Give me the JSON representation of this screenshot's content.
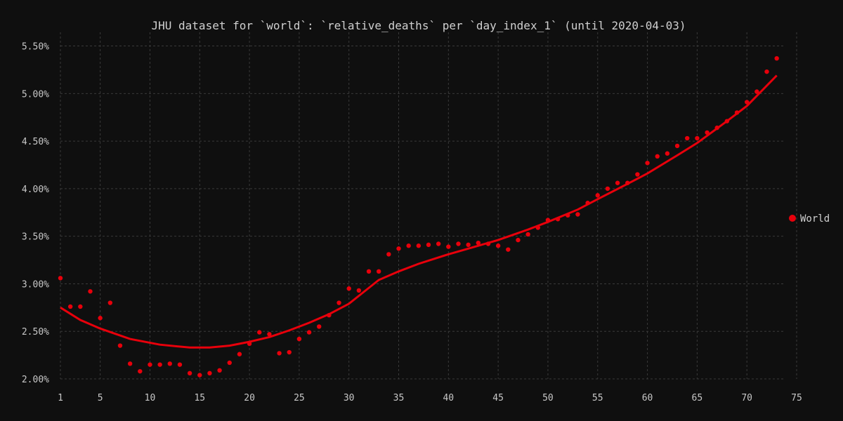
{
  "chart_data": {
    "type": "scatter",
    "title": "JHU dataset for `world`: `relative_deaths` per `day_index_1` (until 2020-04-03)",
    "xlabel": "",
    "ylabel": "",
    "xlim": [
      1,
      75
    ],
    "ylim": [
      2.0,
      5.6
    ],
    "x_ticks": [
      1,
      5,
      10,
      15,
      20,
      25,
      30,
      35,
      40,
      45,
      50,
      55,
      60,
      65,
      70,
      75
    ],
    "y_ticks": [
      2.0,
      2.5,
      3.0,
      3.5,
      4.0,
      4.5,
      5.0,
      5.5
    ],
    "y_tick_labels": [
      "2.00%",
      "2.50%",
      "3.00%",
      "3.50%",
      "4.00%",
      "4.50%",
      "5.00%",
      "5.50%"
    ],
    "grid": true,
    "legend_position": "right",
    "series": [
      {
        "name": "World",
        "color": "#e8000b",
        "points": [
          [
            1,
            3.06
          ],
          [
            2,
            2.76
          ],
          [
            3,
            2.76
          ],
          [
            4,
            2.92
          ],
          [
            5,
            2.64
          ],
          [
            6,
            2.8
          ],
          [
            7,
            2.35
          ],
          [
            8,
            2.16
          ],
          [
            9,
            2.08
          ],
          [
            10,
            2.15
          ],
          [
            11,
            2.15
          ],
          [
            12,
            2.16
          ],
          [
            13,
            2.15
          ],
          [
            14,
            2.06
          ],
          [
            15,
            2.04
          ],
          [
            16,
            2.06
          ],
          [
            17,
            2.09
          ],
          [
            18,
            2.17
          ],
          [
            19,
            2.26
          ],
          [
            20,
            2.37
          ],
          [
            21,
            2.49
          ],
          [
            22,
            2.47
          ],
          [
            23,
            2.27
          ],
          [
            24,
            2.28
          ],
          [
            25,
            2.42
          ],
          [
            26,
            2.49
          ],
          [
            27,
            2.55
          ],
          [
            28,
            2.67
          ],
          [
            29,
            2.8
          ],
          [
            30,
            2.95
          ],
          [
            31,
            2.93
          ],
          [
            32,
            3.13
          ],
          [
            33,
            3.13
          ],
          [
            34,
            3.31
          ],
          [
            35,
            3.37
          ],
          [
            36,
            3.4
          ],
          [
            37,
            3.4
          ],
          [
            38,
            3.41
          ],
          [
            39,
            3.42
          ],
          [
            40,
            3.39
          ],
          [
            41,
            3.42
          ],
          [
            42,
            3.41
          ],
          [
            43,
            3.43
          ],
          [
            44,
            3.42
          ],
          [
            45,
            3.4
          ],
          [
            46,
            3.36
          ],
          [
            47,
            3.46
          ],
          [
            48,
            3.52
          ],
          [
            49,
            3.59
          ],
          [
            50,
            3.67
          ],
          [
            51,
            3.68
          ],
          [
            52,
            3.72
          ],
          [
            53,
            3.73
          ],
          [
            54,
            3.85
          ],
          [
            55,
            3.93
          ],
          [
            56,
            4.0
          ],
          [
            57,
            4.06
          ],
          [
            58,
            4.06
          ],
          [
            59,
            4.15
          ],
          [
            60,
            4.27
          ],
          [
            61,
            4.34
          ],
          [
            62,
            4.37
          ],
          [
            63,
            4.45
          ],
          [
            64,
            4.53
          ],
          [
            65,
            4.53
          ],
          [
            66,
            4.59
          ],
          [
            67,
            4.64
          ],
          [
            68,
            4.71
          ],
          [
            69,
            4.8
          ],
          [
            70,
            4.91
          ],
          [
            71,
            5.02
          ],
          [
            72,
            5.23
          ],
          [
            73,
            5.37
          ]
        ],
        "trend": [
          [
            1,
            2.75
          ],
          [
            3,
            2.62
          ],
          [
            5,
            2.53
          ],
          [
            8,
            2.42
          ],
          [
            11,
            2.36
          ],
          [
            14,
            2.33
          ],
          [
            16,
            2.33
          ],
          [
            18,
            2.35
          ],
          [
            20,
            2.39
          ],
          [
            22,
            2.44
          ],
          [
            24,
            2.51
          ],
          [
            26,
            2.59
          ],
          [
            28,
            2.68
          ],
          [
            30,
            2.79
          ],
          [
            33,
            3.04
          ],
          [
            35,
            3.13
          ],
          [
            37,
            3.21
          ],
          [
            40,
            3.31
          ],
          [
            42,
            3.37
          ],
          [
            45,
            3.46
          ],
          [
            48,
            3.57
          ],
          [
            50,
            3.65
          ],
          [
            53,
            3.78
          ],
          [
            55,
            3.89
          ],
          [
            58,
            4.05
          ],
          [
            60,
            4.16
          ],
          [
            63,
            4.35
          ],
          [
            65,
            4.48
          ],
          [
            68,
            4.71
          ],
          [
            70,
            4.87
          ],
          [
            73,
            5.19
          ]
        ]
      }
    ]
  }
}
